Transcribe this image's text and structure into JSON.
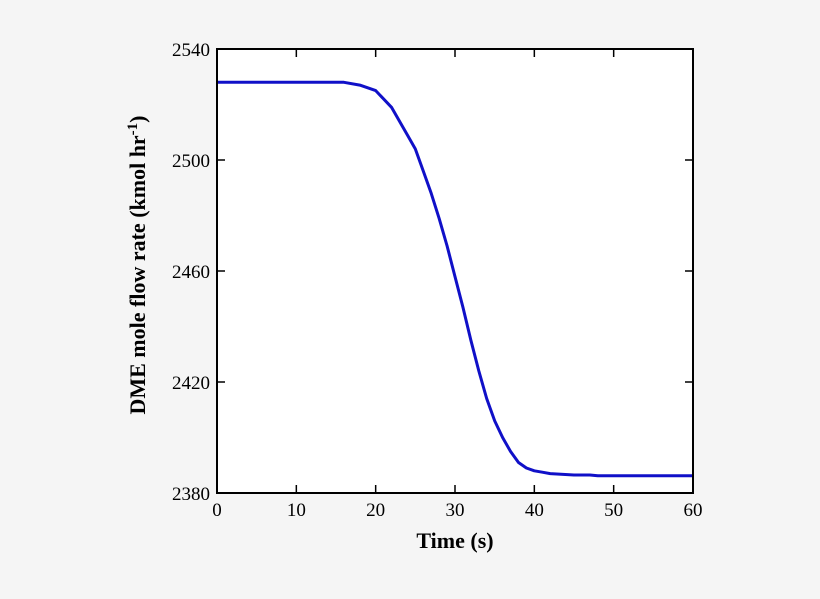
{
  "chart_data": {
    "type": "line",
    "title": "",
    "xlabel": "Time (s)",
    "ylabel": "DME mole flow rate (kmol hr",
    "ylabel_sup": "-1",
    "ylabel_close": ")",
    "xlim": [
      0,
      60
    ],
    "ylim": [
      2380,
      2540
    ],
    "xticks": [
      0,
      10,
      20,
      30,
      40,
      50,
      60
    ],
    "yticks": [
      2380,
      2420,
      2460,
      2500,
      2540
    ],
    "xtick_labels": [
      "0",
      "10",
      "20",
      "30",
      "40",
      "50",
      "60"
    ],
    "ytick_labels": [
      "2380",
      "2420",
      "2460",
      "2500",
      "2540"
    ],
    "grid": false,
    "legend": "none",
    "series": [
      {
        "color": "#1010c8",
        "x": [
          0,
          16,
          18,
          20,
          22,
          24,
          25,
          26,
          27,
          28,
          29,
          30,
          31,
          32,
          33,
          34,
          35,
          36,
          37,
          38,
          39,
          40,
          41,
          42,
          45,
          47,
          48,
          50,
          55,
          60
        ],
        "y": [
          2528,
          2528,
          2527,
          2525,
          2519,
          2509,
          2504,
          2496,
          2488,
          2479,
          2469,
          2458,
          2447,
          2435,
          2424,
          2414,
          2406,
          2400,
          2395,
          2391,
          2389,
          2388,
          2387.5,
          2387,
          2386.5,
          2386.5,
          2386.2,
          2386.2,
          2386.2,
          2386.2
        ]
      }
    ]
  }
}
